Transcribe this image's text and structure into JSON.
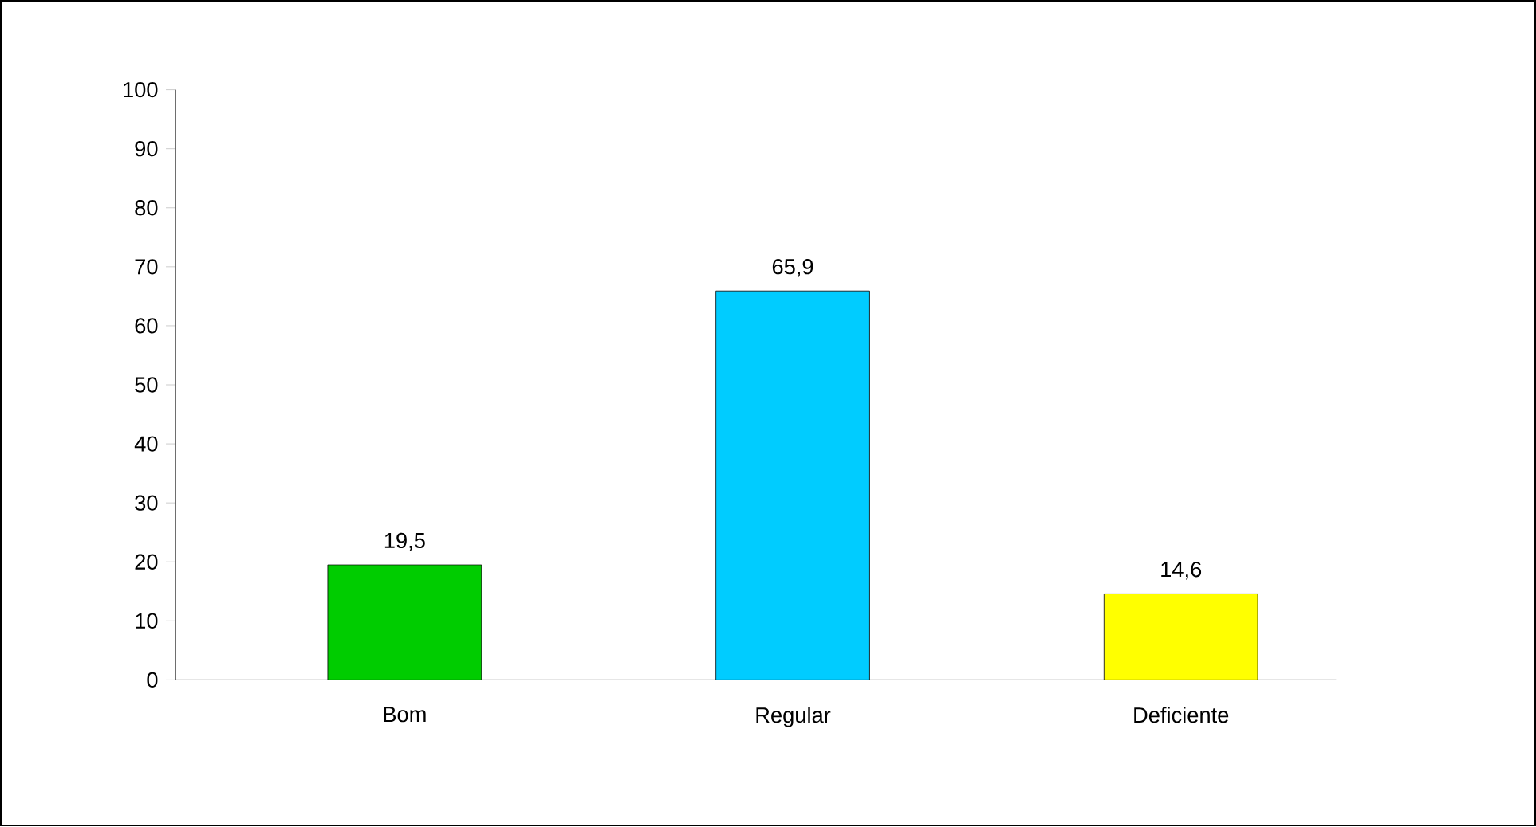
{
  "chart_data": {
    "type": "bar",
    "categories": [
      "Bom",
      "Regular",
      "Deficiente"
    ],
    "values": [
      19.5,
      65.9,
      14.6
    ],
    "colors": [
      "#00cc00",
      "#00ccff",
      "#ffff00"
    ],
    "value_labels": [
      "19,5",
      "65,9",
      "14,6"
    ],
    "ylim": [
      0,
      100
    ],
    "yticks": [
      0,
      10,
      20,
      30,
      40,
      50,
      60,
      70,
      80,
      90,
      100
    ],
    "grid": false
  }
}
